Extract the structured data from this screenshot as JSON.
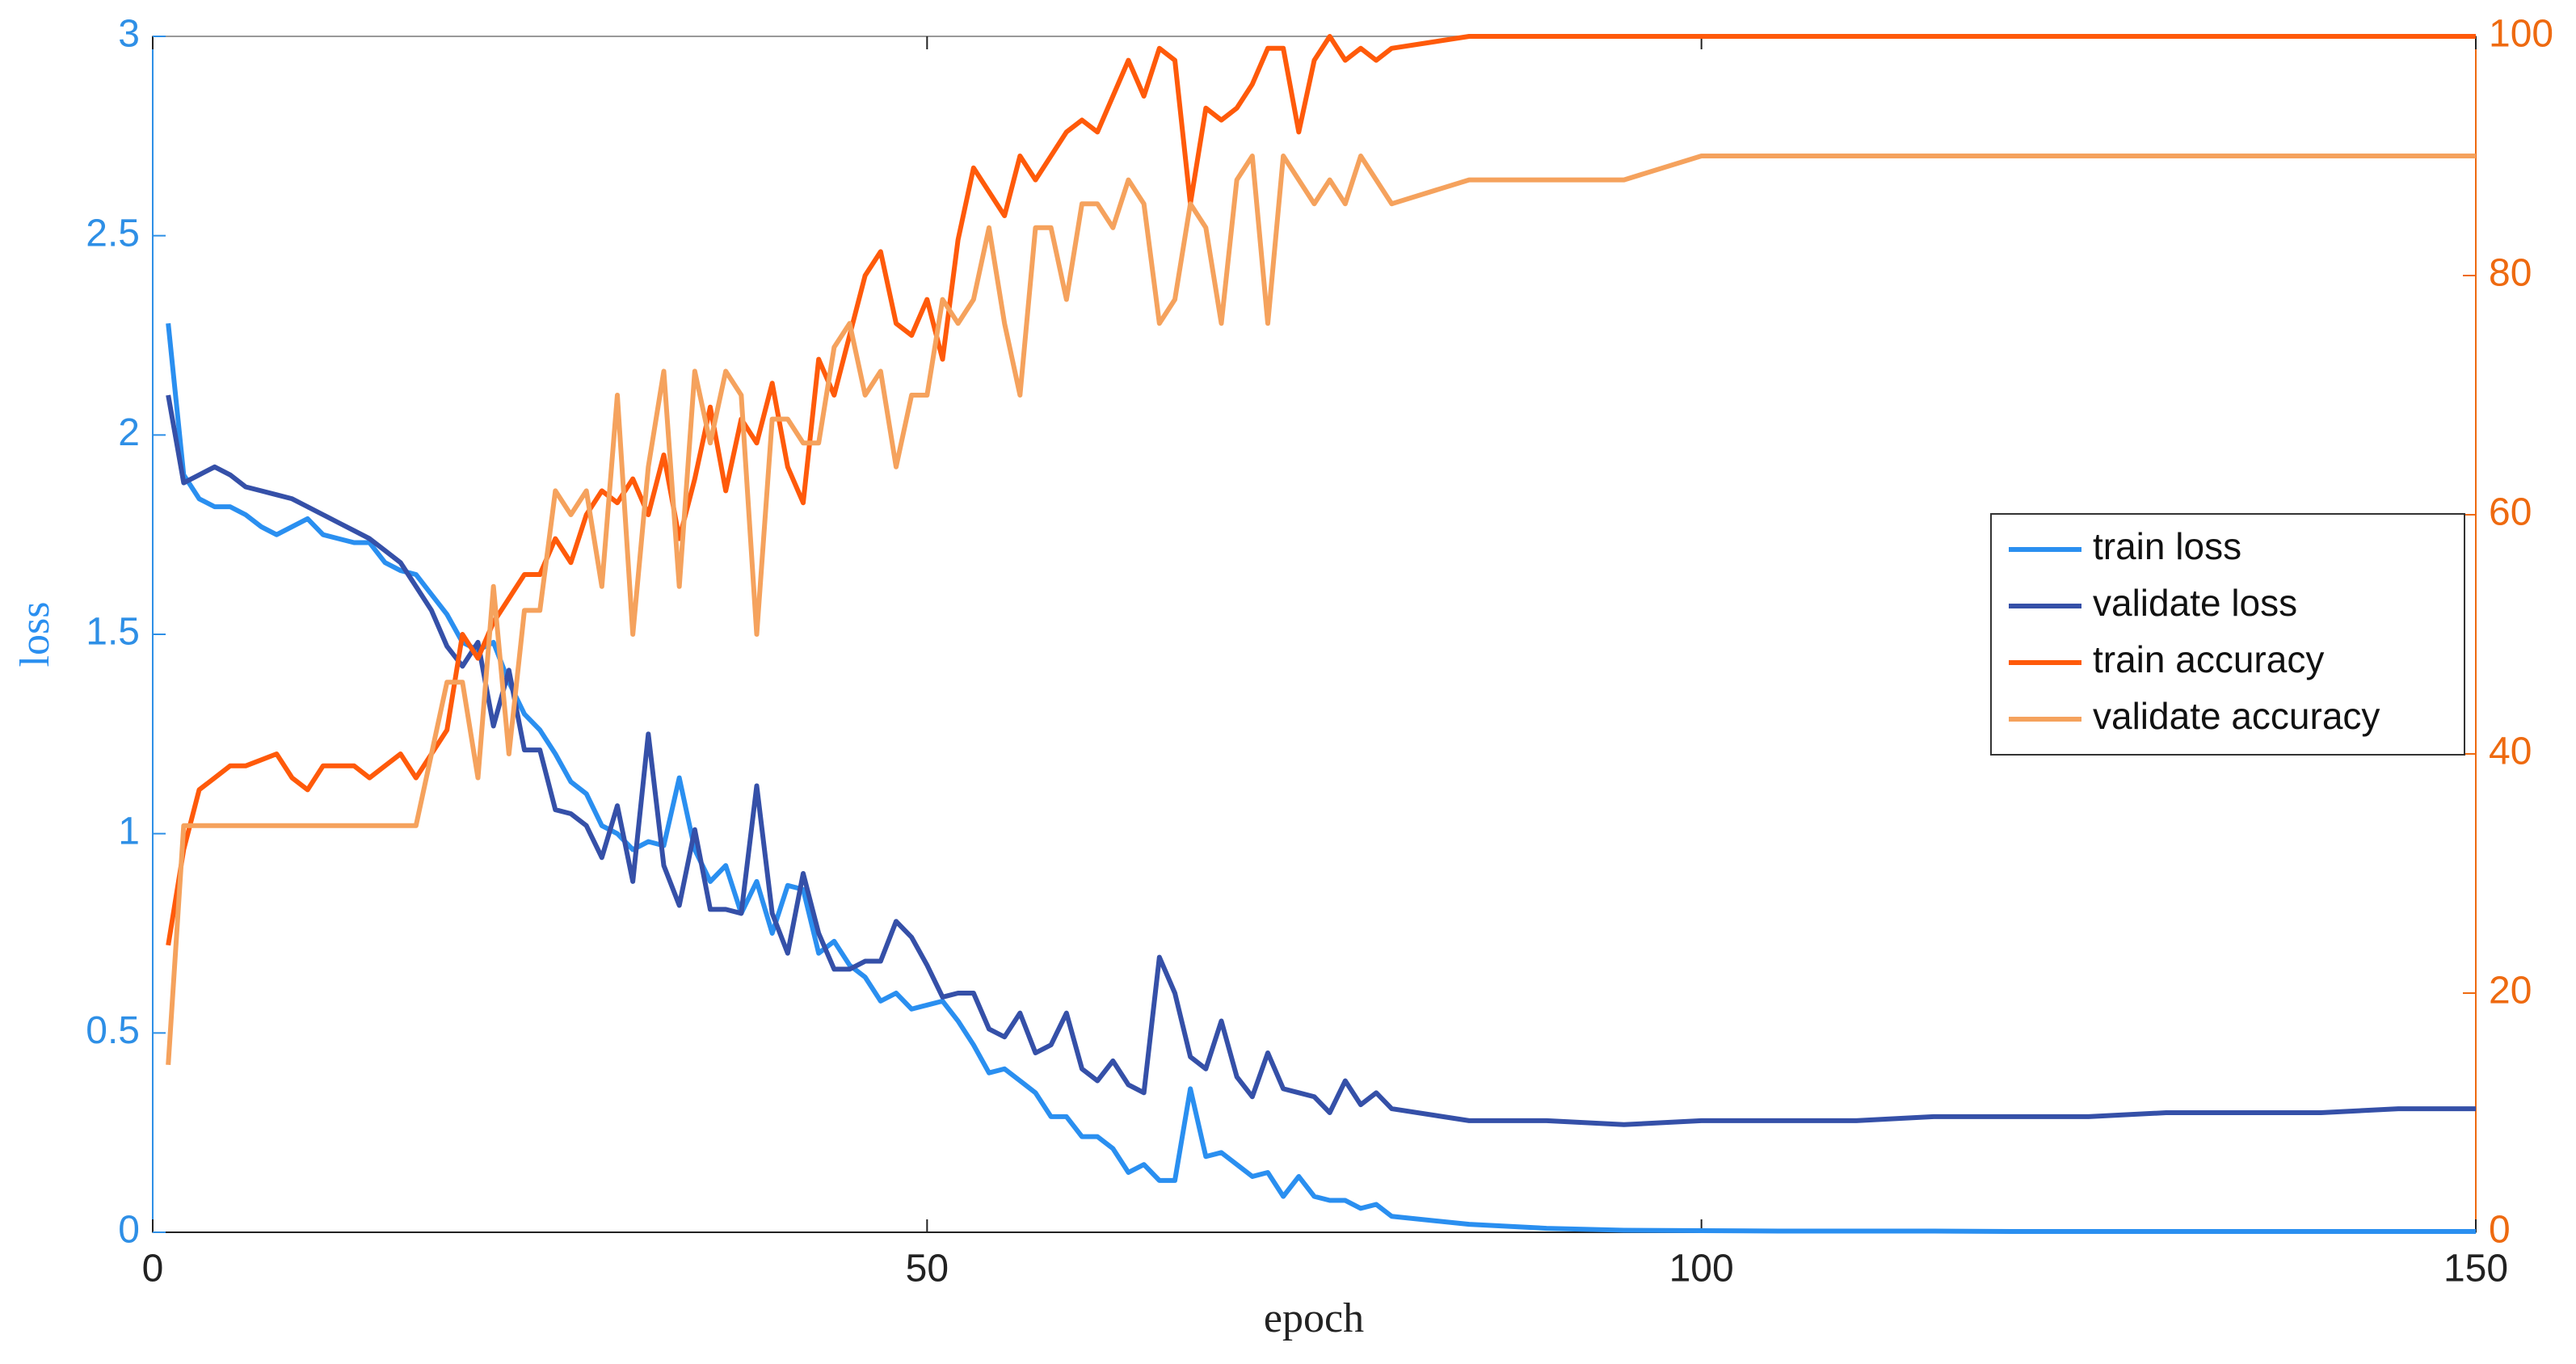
{
  "chart_data": {
    "type": "line",
    "x_label": "epoch",
    "y_label": "loss",
    "xlim": [
      0,
      150
    ],
    "xticks": [
      0,
      50,
      100,
      150
    ],
    "ylim": [
      0,
      3
    ],
    "yticks": [
      0,
      0.5,
      1,
      1.5,
      2,
      2.5,
      3
    ],
    "y2lim": [
      0,
      100
    ],
    "y2ticks": [
      0,
      20,
      40,
      60,
      80,
      100
    ],
    "legend": "right",
    "x": [
      1,
      2,
      3,
      4,
      5,
      6,
      7,
      8,
      9,
      10,
      11,
      12,
      13,
      14,
      15,
      16,
      17,
      18,
      19,
      20,
      21,
      22,
      23,
      24,
      25,
      26,
      27,
      28,
      29,
      30,
      31,
      32,
      33,
      34,
      35,
      36,
      37,
      38,
      39,
      40,
      41,
      42,
      43,
      44,
      45,
      46,
      47,
      48,
      49,
      50,
      51,
      52,
      53,
      54,
      55,
      56,
      57,
      58,
      59,
      60,
      61,
      62,
      63,
      64,
      65,
      66,
      67,
      68,
      69,
      70,
      71,
      72,
      73,
      74,
      75,
      76,
      77,
      78,
      79,
      80,
      85,
      90,
      95,
      100,
      105,
      110,
      115,
      120,
      125,
      130,
      135,
      140,
      145,
      150
    ],
    "series": [
      {
        "name": "train loss",
        "color": "#2a8ff0",
        "values": [
          2.28,
          1.9,
          1.84,
          1.82,
          1.82,
          1.8,
          1.77,
          1.75,
          1.77,
          1.79,
          1.75,
          1.74,
          1.73,
          1.73,
          1.68,
          1.66,
          1.65,
          1.6,
          1.55,
          1.48,
          1.46,
          1.48,
          1.38,
          1.3,
          1.26,
          1.2,
          1.13,
          1.1,
          1.02,
          1.0,
          0.96,
          0.98,
          0.97,
          1.14,
          0.96,
          0.88,
          0.92,
          0.8,
          0.88,
          0.75,
          0.87,
          0.86,
          0.7,
          0.73,
          0.67,
          0.64,
          0.58,
          0.6,
          0.56,
          0.57,
          0.58,
          0.53,
          0.47,
          0.4,
          0.41,
          0.38,
          0.35,
          0.29,
          0.29,
          0.24,
          0.24,
          0.21,
          0.15,
          0.17,
          0.13,
          0.13,
          0.36,
          0.19,
          0.2,
          0.17,
          0.14,
          0.15,
          0.09,
          0.14,
          0.09,
          0.08,
          0.08,
          0.06,
          0.07,
          0.04,
          0.02,
          0.01,
          0.005,
          0.004,
          0.003,
          0.003,
          0.003,
          0.002,
          0.002,
          0.002,
          0.002,
          0.002,
          0.002,
          0.002
        ]
      },
      {
        "name": "validate loss",
        "color": "#3550a8",
        "values": [
          2.1,
          1.88,
          1.9,
          1.92,
          1.9,
          1.87,
          1.86,
          1.85,
          1.84,
          1.82,
          1.8,
          1.78,
          1.76,
          1.74,
          1.71,
          1.68,
          1.62,
          1.56,
          1.47,
          1.42,
          1.48,
          1.27,
          1.41,
          1.21,
          1.21,
          1.06,
          1.05,
          1.02,
          0.94,
          1.07,
          0.88,
          1.25,
          0.92,
          0.82,
          1.01,
          0.81,
          0.81,
          0.8,
          1.12,
          0.8,
          0.7,
          0.9,
          0.75,
          0.66,
          0.66,
          0.68,
          0.68,
          0.78,
          0.74,
          0.67,
          0.59,
          0.6,
          0.6,
          0.51,
          0.49,
          0.55,
          0.45,
          0.47,
          0.55,
          0.41,
          0.38,
          0.43,
          0.37,
          0.35,
          0.69,
          0.6,
          0.44,
          0.41,
          0.53,
          0.39,
          0.34,
          0.45,
          0.36,
          0.35,
          0.34,
          0.3,
          0.38,
          0.32,
          0.35,
          0.31,
          0.28,
          0.28,
          0.27,
          0.28,
          0.28,
          0.28,
          0.29,
          0.29,
          0.29,
          0.3,
          0.3,
          0.3,
          0.31,
          0.31
        ]
      },
      {
        "name": "train accuracy",
        "color": "#ff5a0a",
        "axis": "y2",
        "values": [
          24,
          32,
          37,
          38,
          39,
          39,
          39.5,
          40,
          38,
          37,
          39,
          39,
          39,
          38,
          39,
          40,
          38,
          40,
          42,
          50,
          48,
          51,
          53,
          55,
          55,
          58,
          56,
          60,
          62,
          61,
          63,
          60,
          65,
          58,
          63,
          69,
          62,
          68,
          66,
          71,
          64,
          61,
          73,
          70,
          75,
          80,
          82,
          76,
          75,
          78,
          73,
          83,
          89,
          87,
          85,
          90,
          88,
          90,
          92,
          93,
          92,
          95,
          98,
          95,
          99,
          98,
          86,
          94,
          93,
          94,
          96,
          99,
          99,
          92,
          98,
          100,
          98,
          99,
          98,
          99,
          100,
          100,
          100,
          100,
          100,
          100,
          100,
          100,
          100,
          100,
          100,
          100,
          100,
          100
        ]
      },
      {
        "name": "validate accuracy",
        "color": "#f5a25d",
        "axis": "y2",
        "values": [
          14,
          34,
          34,
          34,
          34,
          34,
          34,
          34,
          34,
          34,
          34,
          34,
          34,
          34,
          34,
          34,
          34,
          40,
          46,
          46,
          38,
          54,
          40,
          52,
          52,
          62,
          60,
          62,
          54,
          70,
          50,
          64,
          72,
          54,
          72,
          66,
          72,
          70,
          50,
          68,
          68,
          66,
          66,
          74,
          76,
          70,
          72,
          64,
          70,
          70,
          78,
          76,
          78,
          84,
          76,
          70,
          84,
          84,
          78,
          86,
          86,
          84,
          88,
          86,
          76,
          78,
          86,
          84,
          76,
          88,
          90,
          76,
          90,
          88,
          86,
          88,
          86,
          90,
          88,
          86,
          88,
          88,
          88,
          90,
          90,
          90,
          90,
          90,
          90,
          90,
          90,
          90,
          90,
          90
        ]
      }
    ]
  }
}
